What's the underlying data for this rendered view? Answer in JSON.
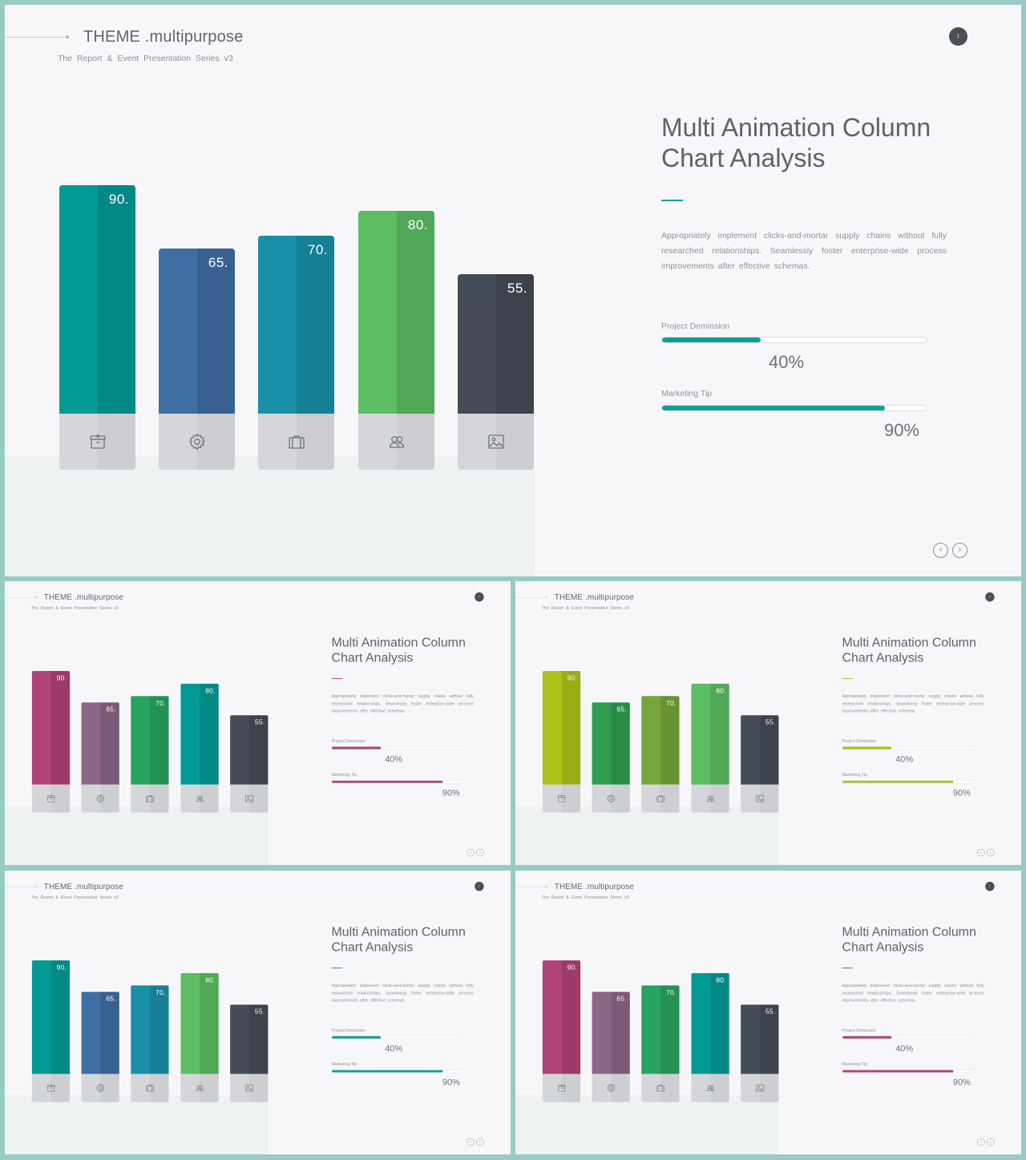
{
  "brand": "THEME .multipurpose",
  "subbrand": "The Report & Event Presentation Series v3",
  "page_number": "1",
  "title_line1": "Multi Animation Column",
  "title_line2": "Chart Analysis",
  "description": "Appropriately implement clicks-and-mortar supply chains without fully researched relationships. Seamlessly foster enterprise-wide process improvements after effective schemas.",
  "progress": [
    {
      "label": "Project Deminsion",
      "value": 40,
      "text": "40%"
    },
    {
      "label": "Marketing Tip",
      "value": 90,
      "text": "90%"
    }
  ],
  "nav": {
    "prev_icon": "chevron-left-circle-icon",
    "next_icon": "chevron-right-circle-icon"
  },
  "chart_data": {
    "type": "bar",
    "categories": [
      "archive",
      "settings",
      "briefcase",
      "users",
      "image"
    ],
    "values": [
      90,
      65,
      70,
      80,
      55
    ],
    "value_labels": [
      "90.",
      "65.",
      "70.",
      "80.",
      "55."
    ],
    "icons": [
      "archive-box-icon",
      "gear-icon",
      "briefcase-icon",
      "users-icon",
      "image-icon"
    ],
    "title": "",
    "xlabel": "",
    "ylabel": "",
    "ylim": [
      0,
      100
    ]
  },
  "slides": [
    {
      "id": "main",
      "bar_colors": [
        "#029a97",
        "#3f6ea4",
        "#1890a9",
        "#5cbd62",
        "#444c57"
      ],
      "accent": "#11a094"
    },
    {
      "id": "s1",
      "bar_colors": [
        "#b04377",
        "#8b6687",
        "#28a45f",
        "#029a97",
        "#444c57"
      ],
      "accent": "#b04377"
    },
    {
      "id": "s2",
      "bar_colors": [
        "#adc118",
        "#2d9e50",
        "#76a53a",
        "#5cbd62",
        "#444c57"
      ],
      "accent": "#adc118"
    },
    {
      "id": "s3",
      "bar_colors": [
        "#029a97",
        "#3f6ea4",
        "#1890a9",
        "#5cbd62",
        "#444c57"
      ],
      "accent": "#11a094"
    },
    {
      "id": "s4",
      "bar_colors": [
        "#b04377",
        "#8b6687",
        "#28a45f",
        "#029a97",
        "#444c57"
      ],
      "accent": "#b04377"
    }
  ]
}
